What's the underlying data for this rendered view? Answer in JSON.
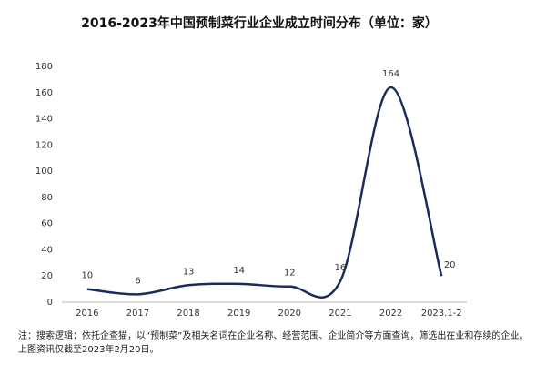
{
  "chart_data": {
    "type": "line",
    "title": "2016-2023年中国预制菜行业企业成立时间分布（单位：家）",
    "categories": [
      "2016",
      "2017",
      "2018",
      "2019",
      "2020",
      "2021",
      "2022",
      "2023.1-2"
    ],
    "values": [
      10,
      6,
      13,
      14,
      12,
      16,
      164,
      20
    ],
    "color": "#1b2b5e",
    "ylim": [
      0,
      180
    ],
    "yticks": [
      0,
      20,
      40,
      60,
      80,
      100,
      120,
      140,
      160,
      180
    ],
    "grid": false,
    "note": "注：搜索逻辑：依托企查猫，以“预制菜”及相关名词在企业名称、经营范围、企业简介等方面查询，筛选出在业和存续的企业。上图资讯仅截至2023年2月20日。"
  }
}
